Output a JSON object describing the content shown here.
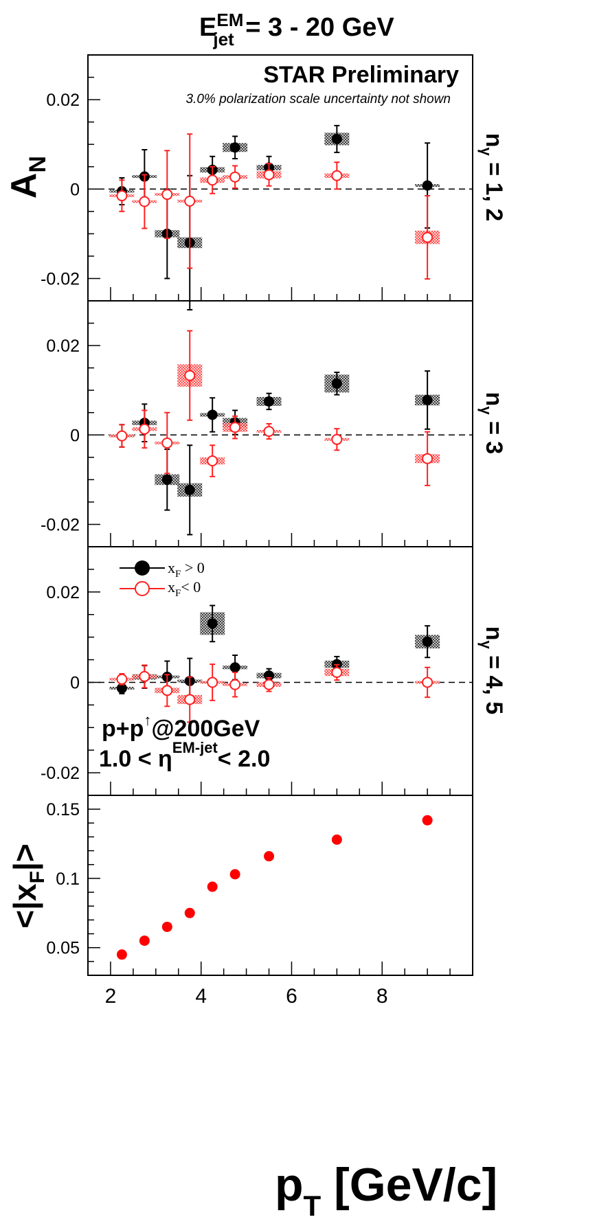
{
  "header": {
    "title_e": "E",
    "title_sup": "EM",
    "title_sub": "jet",
    "title_rest": " = 3 - 20 GeV"
  },
  "annotations": {
    "star_preliminary": "STAR Preliminary",
    "pol_note": "3.0% polarization scale uncertainty not shown",
    "collision_base": "p+p",
    "collision_arrow": "↑",
    "collision_rest": "@200GeV",
    "eta_left": "1.0 <  η",
    "eta_sup": "EM-jet",
    "eta_right": "< 2.0"
  },
  "legend": {
    "pos_label_x": "x",
    "pos_label_sub": "F",
    "pos_label_rest": " > 0",
    "neg_label_x": "x",
    "neg_label_sub": "F",
    "neg_label_rest": "< 0"
  },
  "axes": {
    "an_label_main": "A",
    "an_label_sub": "N",
    "xf_label": "<|x",
    "xf_label_sub": "F",
    "xf_label_end": "|>",
    "pt_label_main": "p",
    "pt_label_sub": "T",
    "pt_label_rest": " [GeV/c]",
    "an_ticks": [
      "0.02",
      "0",
      "-0.02"
    ],
    "xf_ticks": [
      "0.15",
      "0.1",
      "0.05"
    ],
    "pt_ticks": [
      "2",
      "4",
      "6",
      "8"
    ]
  },
  "panel_labels": [
    {
      "n": "n",
      "sub": "γ",
      "rest": " = 1, 2"
    },
    {
      "n": "n",
      "sub": "γ",
      "rest": " = 3"
    },
    {
      "n": "n",
      "sub": "γ",
      "rest": " = 4, 5"
    }
  ],
  "colors": {
    "positive_xf": "#000000",
    "negative_xf": "#ff2020",
    "xf_points": "#ff0000",
    "pos_box": "#555555",
    "neg_box": "#ff6666"
  },
  "chart_data": [
    {
      "type": "scatter",
      "panel": "n_gamma = 1, 2",
      "ylabel": "A_N",
      "xlim": [
        1.5,
        10
      ],
      "ylim": [
        -0.025,
        0.03
      ],
      "reference_line": 0,
      "series": [
        {
          "name": "x_F > 0",
          "marker": "filled-circle",
          "x": [
            2.25,
            2.75,
            3.25,
            3.75,
            4.25,
            4.75,
            5.5,
            7.0,
            9.0
          ],
          "y": [
            -0.0005,
            0.0028,
            -0.01,
            -0.012,
            0.0043,
            0.0093,
            0.0048,
            0.0112,
            0.0008
          ],
          "yerr": [
            0.003,
            0.006,
            0.01,
            0.015,
            0.003,
            0.0025,
            0.0025,
            0.003,
            0.0095
          ],
          "syst": [
            0.0003,
            0.0003,
            0.0008,
            0.0012,
            0.0006,
            0.001,
            0.0006,
            0.0014,
            0.0002
          ]
        },
        {
          "name": "x_F < 0",
          "marker": "open-circle",
          "x": [
            2.25,
            2.75,
            3.25,
            3.75,
            4.25,
            4.75,
            5.5,
            7.0,
            9.0
          ],
          "y": [
            -0.0015,
            -0.0028,
            -0.0012,
            -0.0027,
            0.002,
            0.0027,
            0.0032,
            0.003,
            -0.0108
          ],
          "yerr": [
            0.0035,
            0.006,
            0.0098,
            0.015,
            0.003,
            0.0025,
            0.0025,
            0.003,
            0.0093
          ],
          "syst": [
            0.0002,
            0.0002,
            0.0002,
            0.0003,
            0.0006,
            0.0004,
            0.0008,
            0.0005,
            0.0015
          ]
        }
      ]
    },
    {
      "type": "scatter",
      "panel": "n_gamma = 3",
      "ylabel": "A_N",
      "xlim": [
        1.5,
        10
      ],
      "ylim": [
        -0.025,
        0.03
      ],
      "reference_line": 0,
      "series": [
        {
          "name": "x_F > 0",
          "marker": "filled-circle",
          "x": [
            2.25,
            2.75,
            3.25,
            3.75,
            4.25,
            4.75,
            5.5,
            7.0,
            9.0
          ],
          "y": [
            -0.0002,
            0.0027,
            -0.01,
            -0.0123,
            0.0045,
            0.0028,
            0.0075,
            0.0115,
            0.0078
          ],
          "yerr": [
            0.0025,
            0.0042,
            0.0068,
            0.01,
            0.0038,
            0.0027,
            0.0018,
            0.0025,
            0.0065
          ],
          "syst": [
            0.0002,
            0.0005,
            0.0012,
            0.0015,
            0.0004,
            0.001,
            0.001,
            0.002,
            0.0012
          ]
        },
        {
          "name": "x_F < 0",
          "marker": "open-circle",
          "x": [
            2.25,
            2.75,
            3.25,
            3.75,
            4.25,
            4.75,
            5.5,
            7.0,
            9.0
          ],
          "y": [
            -0.0002,
            0.0013,
            -0.0018,
            0.0133,
            -0.0058,
            0.0017,
            0.0008,
            -0.001,
            -0.0053
          ],
          "yerr": [
            0.0025,
            0.0042,
            0.0068,
            0.01,
            0.0035,
            0.0025,
            0.0017,
            0.0024,
            0.006
          ],
          "syst": [
            0.0002,
            0.0004,
            0.0002,
            0.0025,
            0.0008,
            0.001,
            0.0003,
            0.0003,
            0.001
          ]
        }
      ]
    },
    {
      "type": "scatter",
      "panel": "n_gamma = 4, 5",
      "ylabel": "A_N",
      "xlim": [
        1.5,
        10
      ],
      "ylim": [
        -0.025,
        0.03
      ],
      "reference_line": 0,
      "series": [
        {
          "name": "x_F > 0",
          "marker": "filled-circle",
          "x": [
            2.25,
            2.75,
            3.25,
            3.75,
            4.25,
            4.75,
            5.5,
            7.0,
            9.0
          ],
          "y": [
            -0.0013,
            0.0012,
            0.0012,
            0.0003,
            0.013,
            0.0033,
            0.0015,
            0.004,
            0.009
          ],
          "yerr": [
            0.0012,
            0.0025,
            0.0035,
            0.005,
            0.004,
            0.0027,
            0.0015,
            0.0017,
            0.0035
          ],
          "syst": [
            0.0002,
            0.0006,
            0.0003,
            0.0002,
            0.0025,
            0.0004,
            0.0006,
            0.0008,
            0.0015
          ]
        },
        {
          "name": "x_F < 0",
          "marker": "open-circle",
          "x": [
            2.25,
            2.75,
            3.25,
            3.75,
            4.25,
            4.75,
            5.5,
            7.0,
            9.0
          ],
          "y": [
            0.0007,
            0.0013,
            -0.0018,
            -0.0038,
            0.0,
            -0.0005,
            -0.0005,
            0.0022,
            0.0
          ],
          "yerr": [
            0.0012,
            0.0025,
            0.0035,
            0.005,
            0.004,
            0.0027,
            0.0015,
            0.0017,
            0.0033
          ],
          "syst": [
            0.0003,
            0.0004,
            0.0006,
            0.001,
            0.0002,
            0.0002,
            0.0005,
            0.0008,
            0.0002
          ]
        }
      ]
    },
    {
      "type": "scatter",
      "panel": "mean |x_F|",
      "ylabel": "<|x_F|>",
      "xlabel": "p_T [GeV/c]",
      "xlim": [
        1.5,
        10
      ],
      "ylim": [
        0.03,
        0.16
      ],
      "series": [
        {
          "name": "<|x_F|>",
          "marker": "filled-circle",
          "x": [
            2.25,
            2.75,
            3.25,
            3.75,
            4.25,
            4.75,
            5.5,
            7.0,
            9.0
          ],
          "y": [
            0.045,
            0.055,
            0.065,
            0.075,
            0.094,
            0.103,
            0.116,
            0.128,
            0.142
          ]
        }
      ]
    }
  ]
}
